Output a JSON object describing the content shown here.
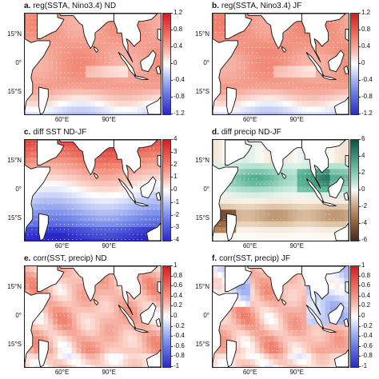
{
  "colors": {
    "land": "#ffffff",
    "coast": "#111111",
    "stipple": "#ffffff"
  },
  "panels": [
    {
      "letter": "a.",
      "title": "reg(SSTA, Nino3.4) ND",
      "lat_labels": [
        "15°N",
        "0°",
        "15°S"
      ],
      "lon_labels": [
        "60°E",
        "90°E"
      ],
      "colorbar_ticks": [
        "1.2",
        "0.8",
        "0.4",
        "0",
        "-0.4",
        "-0.8",
        "-1.2"
      ],
      "colorbar_range": [
        -1.2,
        1.2
      ],
      "colormap": "blue-white-red",
      "field": "reg"
    },
    {
      "letter": "b.",
      "title": "reg(SSTA, Nino3.4) JF",
      "lat_labels": [
        "15°N",
        "0°",
        "15°S"
      ],
      "lon_labels": [
        "60°E",
        "90°E"
      ],
      "colorbar_ticks": [
        "1.2",
        "0.8",
        "0.4",
        "0",
        "-0.4",
        "-0.8",
        "-1.2"
      ],
      "colorbar_range": [
        -1.2,
        1.2
      ],
      "colormap": "blue-white-red",
      "field": "reg"
    },
    {
      "letter": "c.",
      "title": "diff SST ND-JF",
      "lat_labels": [
        "15°N",
        "0°",
        "15°S"
      ],
      "lon_labels": [
        "60°E",
        "90°E"
      ],
      "colorbar_ticks": [
        "4",
        "3",
        "2",
        "1",
        "0",
        "-1",
        "-2",
        "-3",
        "-4"
      ],
      "colorbar_range": [
        -4,
        4
      ],
      "colormap": "blue-white-red",
      "field": "diffsst"
    },
    {
      "letter": "d.",
      "title": "diff precip ND-JF",
      "lat_labels": [
        "15°N",
        "0°",
        "15°S"
      ],
      "lon_labels": [
        "60°E",
        "90°E"
      ],
      "colorbar_ticks": [
        "6",
        "4",
        "2",
        "0",
        "-2",
        "-4",
        "-6"
      ],
      "colorbar_range": [
        -6,
        6
      ],
      "colormap": "brown-white-green",
      "field": "diffprecip"
    },
    {
      "letter": "e.",
      "title": "corr(SST, precip) ND",
      "lat_labels": [
        "15°N",
        "0°",
        "15°S"
      ],
      "lon_labels": [
        "60°E",
        "90°E"
      ],
      "colorbar_ticks": [
        "1",
        "0.8",
        "0.6",
        "0.4",
        "0.2",
        "0",
        "-0.2",
        "-0.4",
        "-0.6",
        "-0.8",
        "-1"
      ],
      "colorbar_range": [
        -1,
        1
      ],
      "colormap": "blue-white-red",
      "field": "corr"
    },
    {
      "letter": "f.",
      "title": "corr(SST, precip) JF",
      "lat_labels": [
        "15°N",
        "0°",
        "15°S"
      ],
      "lon_labels": [
        "60°E",
        "90°E"
      ],
      "colorbar_ticks": [
        "1",
        "0.8",
        "0.6",
        "0.4",
        "0.2",
        "0",
        "-0.2",
        "-0.4",
        "-0.6",
        "-0.8",
        "-1"
      ],
      "colorbar_range": [
        -1,
        1
      ],
      "colormap": "blue-white-red",
      "field": "corr"
    }
  ]
}
